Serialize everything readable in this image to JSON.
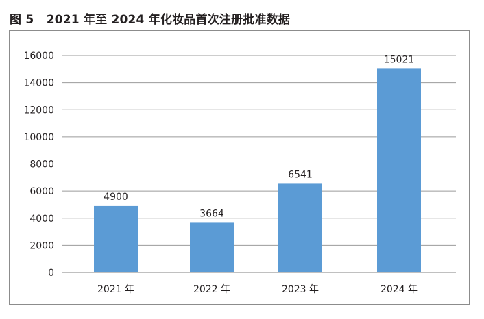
{
  "caption": {
    "figure_number": "图 5",
    "title": "2021 年至 2024 年化妆品首次注册批准数据"
  },
  "chart_data": {
    "type": "bar",
    "categories": [
      "2021 年",
      "2022 年",
      "2023 年",
      "2024 年"
    ],
    "values": [
      4900,
      3664,
      6541,
      15021
    ],
    "data_labels": [
      "4900",
      "3664",
      "6541",
      "15021"
    ],
    "yticks": [
      "0",
      "2000",
      "4000",
      "6000",
      "8000",
      "10000",
      "12000",
      "14000",
      "16000"
    ],
    "ylim": [
      0,
      16000
    ],
    "grid": true,
    "legend": "none",
    "bar_color": "#5b9bd5",
    "grid_color": "#9b9b9b"
  }
}
